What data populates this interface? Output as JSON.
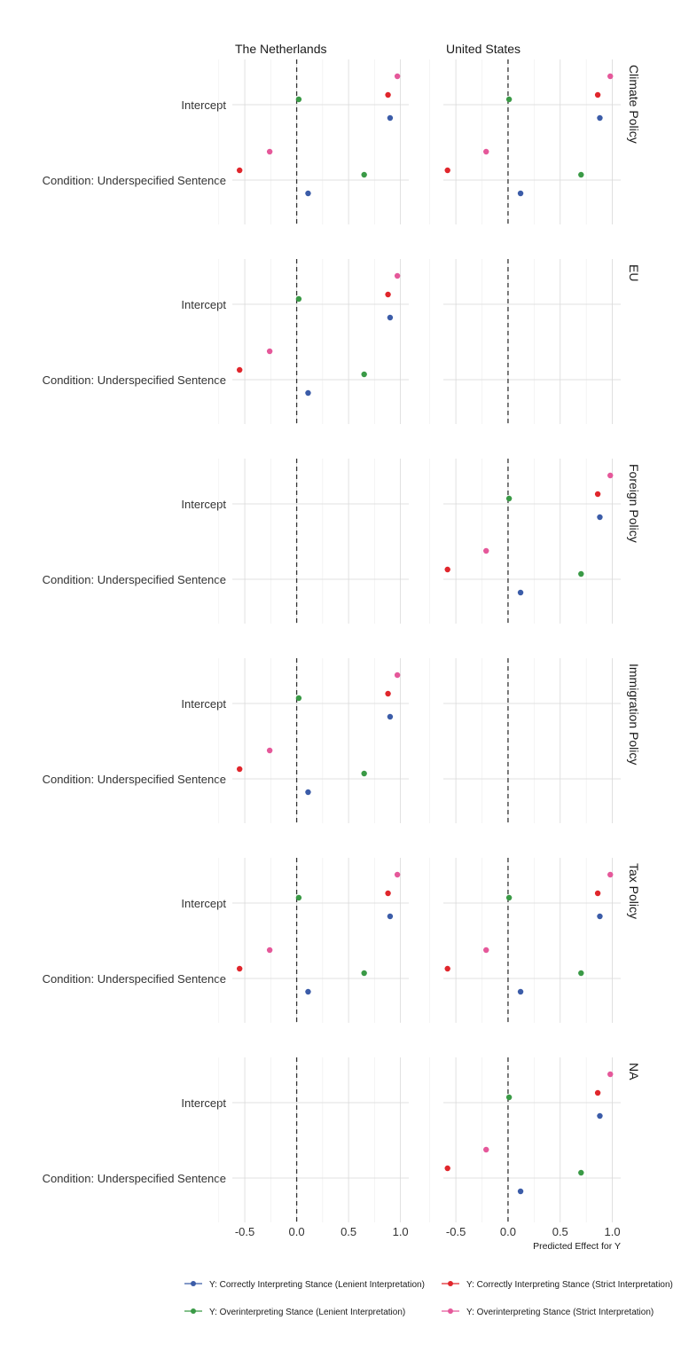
{
  "chart_data": {
    "type": "scatter",
    "facet_columns": [
      "The Netherlands",
      "United States"
    ],
    "facet_rows": [
      "Climate Policy",
      "EU",
      "Foreign Policy",
      "Immigration Policy",
      "Tax Policy",
      "NA"
    ],
    "terms": [
      "Intercept",
      "Condition: Underspecified Sentence"
    ],
    "x_axis": {
      "label": "Predicted Effect for Y",
      "range": [
        -0.62,
        1.08
      ],
      "ticks": [
        -0.5,
        0.0,
        0.5,
        1.0
      ],
      "tick_labels": [
        "-0.5",
        "0.0",
        "0.5",
        "1.0"
      ],
      "reference_line": 0.0
    },
    "grid": true,
    "legend_position": "bottom",
    "series": [
      {
        "name": "Y: Correctly Interpreting Stance (Lenient Interpretation)",
        "color": "#3b5ca8"
      },
      {
        "name": "Y: Correctly Interpreting Stance (Strict Interpretation)",
        "color": "#e0262c"
      },
      {
        "name": "Y: Overinterpreting Stance (Lenient Interpretation)",
        "color": "#3a9a46"
      },
      {
        "name": "Y: Overinterpreting Stance (Strict Interpretation)",
        "color": "#e5589a"
      }
    ],
    "points": {
      "The Netherlands": {
        "Climate Policy": {
          "Intercept": [
            0.9,
            0.88,
            0.02,
            0.97
          ],
          "Condition: Underspecified Sentence": [
            0.11,
            -0.55,
            0.65,
            -0.26
          ]
        },
        "EU": {
          "Intercept": [
            0.9,
            0.88,
            0.02,
            0.97
          ],
          "Condition: Underspecified Sentence": [
            0.11,
            -0.55,
            0.65,
            -0.26
          ]
        },
        "Foreign Policy": null,
        "Immigration Policy": {
          "Intercept": [
            0.9,
            0.88,
            0.02,
            0.97
          ],
          "Condition: Underspecified Sentence": [
            0.11,
            -0.55,
            0.65,
            -0.26
          ]
        },
        "Tax Policy": {
          "Intercept": [
            0.9,
            0.88,
            0.02,
            0.97
          ],
          "Condition: Underspecified Sentence": [
            0.11,
            -0.55,
            0.65,
            -0.26
          ]
        },
        "NA": null
      },
      "United States": {
        "Climate Policy": {
          "Intercept": [
            0.88,
            0.86,
            0.01,
            0.98
          ],
          "Condition: Underspecified Sentence": [
            0.12,
            -0.58,
            0.7,
            -0.21
          ]
        },
        "EU": null,
        "Foreign Policy": {
          "Intercept": [
            0.88,
            0.86,
            0.01,
            0.98
          ],
          "Condition: Underspecified Sentence": [
            0.12,
            -0.58,
            0.7,
            -0.21
          ]
        },
        "Immigration Policy": null,
        "Tax Policy": {
          "Intercept": [
            0.88,
            0.86,
            0.01,
            0.98
          ],
          "Condition: Underspecified Sentence": [
            0.12,
            -0.58,
            0.7,
            -0.21
          ]
        },
        "NA": {
          "Intercept": [
            0.88,
            0.86,
            0.01,
            0.98
          ],
          "Condition: Underspecified Sentence": [
            0.12,
            -0.58,
            0.7,
            -0.21
          ]
        }
      }
    }
  }
}
